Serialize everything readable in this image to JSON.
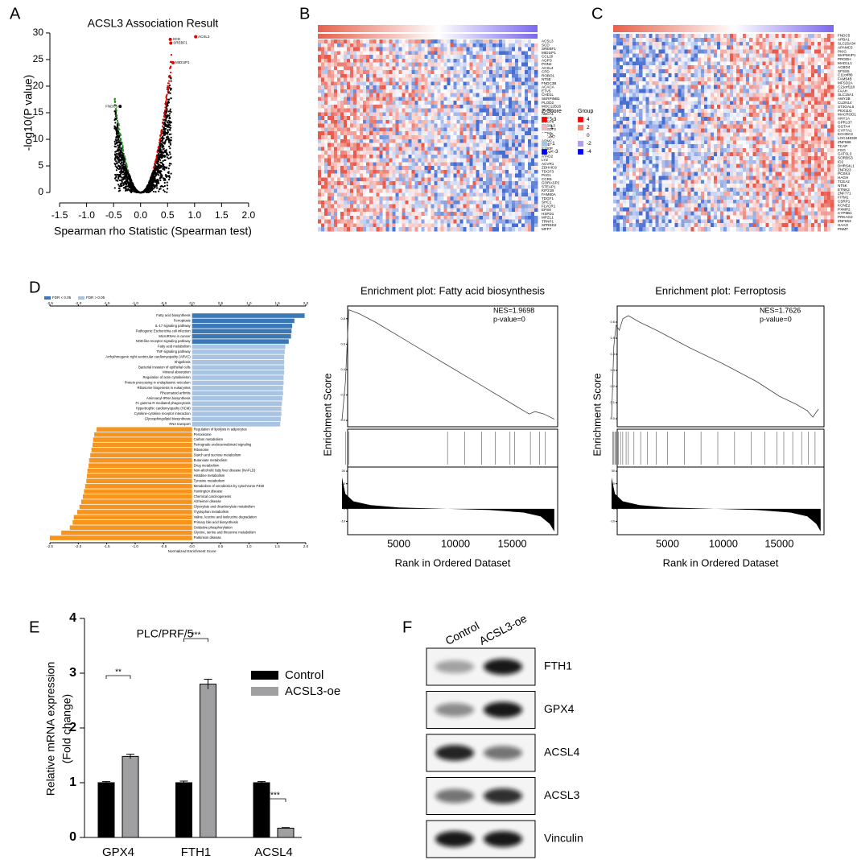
{
  "panel_labels": [
    "A",
    "B",
    "C",
    "D",
    "E",
    "F"
  ],
  "chart_data": [
    {
      "type": "scatter",
      "title": "ACSL3 Association Result",
      "xlabel": "Spearman rho Statistic (Spearman test)",
      "ylabel": "-log10(P value)",
      "xlim": [
        -1.68,
        2.24
      ],
      "ylim": [
        -0.9,
        30.9
      ],
      "xticks": [
        {
          "value": -1.5,
          "label": "-1.5"
        },
        {
          "value": -1,
          "label": "-1.0"
        },
        -0.5,
        {
          "value": 0,
          "label": "0.0"
        },
        0.5,
        {
          "value": 1,
          "label": "1.0"
        },
        1.5,
        {
          "value": 2,
          "label": "2.0"
        }
      ],
      "yticks": [
        0,
        5,
        10,
        15,
        20,
        25,
        30
      ],
      "points": {
        "names": [
          "ACSL3",
          "SCD",
          "SREBF1",
          "MID1IP1",
          "FNDC5"
        ],
        "x": [
          1.02,
          0.55,
          0.56,
          0.6,
          -0.38
        ],
        "y": [
          29.3,
          28.8,
          28.1,
          24.4,
          16.2
        ],
        "colors": [
          "#e00000",
          "#e00000",
          "#e00000",
          "#e00000",
          "#000000"
        ]
      }
    },
    {
      "type": "hbar",
      "xlabel": "Normalized Enrichment Score",
      "legend": [
        {
          "label": "FDR < 0.05",
          "color": "#3b78b5"
        },
        {
          "label": "FDR > 0.05",
          "color": "#a9c3e3"
        }
      ],
      "xlim": [
        -2.5,
        2.0
      ],
      "xticks": [
        {
          "value": -2.5,
          "label": "-2.5"
        },
        {
          "value": -2,
          "label": "-2.0"
        },
        -1.5,
        {
          "value": -1,
          "label": "-1.0"
        },
        -0.5,
        {
          "value": 0,
          "label": "0.0"
        },
        0.5,
        {
          "value": 1,
          "label": "1.0"
        },
        1.5,
        {
          "value": 2,
          "label": "2.0"
        }
      ],
      "categories": [
        "Fatty acid biosynthesis",
        "Ferroptosis",
        "IL-17 signaling pathway",
        "Pathogenic Escherichia coli infection",
        "MicroRNAs in cancer",
        "NOD-like receptor signaling pathway",
        "Fatty acid metabolism",
        "TNF signaling pathway",
        "Arrhythmogenic right ventricular cardiomyopathy (ARVC)",
        "Shigellosis",
        "Bacterial invasion of epithelial cells",
        "Mineral absorption",
        "Regulation of actin cytoskeleton",
        "Protein processing in endoplasmic reticulum",
        "Ribosome biogenesis in eukaryotes",
        "Rheumatoid arthritis",
        "Aminoacyl-tRNA biosynthesis",
        "Fc gamma R-mediated phagocytosis",
        "Hypertrophic cardiomyopathy (HCM)",
        "Cytokine-cytokine receptor interaction",
        "Glycosphingolipid biosynthesis",
        "RNA transport",
        "Regulation of lipolysis in adipocytes",
        "Peroxisome",
        "Carbon metabolism",
        "Retrograde endocannabinoid signaling",
        "Ribosome",
        "Starch and sucrose metabolism",
        "Butanoate metabolism",
        "Drug metabolism",
        "Non-alcoholic fatty liver disease (NAFLD)",
        "Histidine metabolism",
        "Tyrosine metabolism",
        "Metabolism of xenobiotics by cytochrome P450",
        "Huntington disease",
        "Chemical carcinogenesis",
        "Alzheimer disease",
        "Glyoxylate and dicarboxylate metabolism",
        "Tryptophan metabolism",
        "Valine, leucine and isoleucine degradation",
        "Primary bile acid biosynthesis",
        "Oxidative phosphorylation",
        "Glycine, serine and threonine metabolism",
        "Parkinson disease"
      ],
      "values": [
        1.98,
        1.8,
        1.76,
        1.75,
        1.74,
        1.7,
        1.64,
        1.63,
        1.62,
        1.62,
        1.62,
        1.62,
        1.61,
        1.61,
        1.6,
        1.6,
        1.59,
        1.58,
        1.57,
        1.57,
        1.56,
        1.55,
        -1.68,
        -1.72,
        -1.74,
        -1.75,
        -1.77,
        -1.79,
        -1.81,
        -1.82,
        -1.84,
        -1.85,
        -1.86,
        -1.88,
        -1.9,
        -1.92,
        -1.95,
        -1.98,
        -2.02,
        -2.08,
        -2.1,
        -2.15,
        -2.3,
        -2.5
      ],
      "colors": [
        "#3b78b5",
        "#3b78b5",
        "#3b78b5",
        "#3b78b5",
        "#3b78b5",
        "#3b78b5",
        "#a9c3e3",
        "#a9c3e3",
        "#a9c3e3",
        "#a9c3e3",
        "#a9c3e3",
        "#a9c3e3",
        "#a9c3e3",
        "#a9c3e3",
        "#a9c3e3",
        "#a9c3e3",
        "#a9c3e3",
        "#a9c3e3",
        "#a9c3e3",
        "#a9c3e3",
        "#a9c3e3",
        "#a9c3e3",
        "#f7941d",
        "#f7941d",
        "#f7941d",
        "#f7941d",
        "#f7941d",
        "#f7941d",
        "#f7941d",
        "#f7941d",
        "#f7941d",
        "#f7941d",
        "#f7941d",
        "#f7941d",
        "#f7941d",
        "#f7941d",
        "#f7941d",
        "#f7941d",
        "#f7941d",
        "#f7941d",
        "#f7941d",
        "#f7941d",
        "#f7941d",
        "#f7941d"
      ]
    },
    {
      "type": "gsea",
      "title": "Enrichment plot: Fatty acid biosynthesis",
      "nes": "NES=1.9698",
      "pvalue": "p-value=0",
      "ylabel": "Enrichment Score",
      "xlabel": "Rank in Ordered Dataset",
      "xlim": [
        0,
        19000
      ],
      "xticks": [
        5000,
        10000,
        15000
      ],
      "ylim": [
        -0.05,
        0.9
      ],
      "yticks": [
        {
          "value": 0,
          "label": "0.0"
        },
        0.2,
        0.4,
        0.6,
        0.8
      ],
      "x": [
        0,
        300,
        600,
        1500,
        3000,
        6000,
        9000,
        12000,
        15000,
        16500,
        17000,
        17800,
        18700
      ],
      "es": [
        0,
        0.3,
        0.87,
        0.84,
        0.77,
        0.61,
        0.45,
        0.29,
        0.13,
        0.05,
        0.07,
        0.05,
        0.01
      ],
      "hits": [
        300,
        600,
        9300,
        10800,
        12300,
        13500,
        14800,
        15200,
        16600,
        17400,
        17900
      ],
      "mlim": [
        -20,
        32
      ],
      "mticks": [
        30,
        20,
        10,
        0,
        -10
      ],
      "metric_x": [
        0,
        300,
        1000,
        2500,
        5000,
        9000,
        13000,
        16000,
        17500,
        18300,
        18700
      ],
      "metric": [
        25,
        12,
        6,
        3,
        1,
        0,
        -1,
        -3,
        -6,
        -12,
        -18
      ]
    },
    {
      "type": "gsea",
      "title": "Enrichment plot: Ferroptosis",
      "nes": "NES=1.7626",
      "pvalue": "p-value=0",
      "ylabel": "Enrichment Score",
      "xlabel": "Rank in Ordered Dataset",
      "xlim": [
        0,
        19000
      ],
      "xticks": [
        5000,
        10000,
        15000
      ],
      "ylim": [
        -0.05,
        0.7
      ],
      "yticks": [
        {
          "value": 0,
          "label": "0.0"
        },
        0.1,
        0.2,
        0.3,
        0.4,
        0.5,
        0.6
      ],
      "x": [
        0,
        200,
        400,
        700,
        1000,
        1500,
        2500,
        4000,
        7000,
        10000,
        13000,
        15000,
        16500,
        17500,
        18000,
        18500
      ],
      "es": [
        0,
        0.45,
        0.58,
        0.55,
        0.62,
        0.64,
        0.6,
        0.55,
        0.44,
        0.34,
        0.23,
        0.14,
        0.09,
        0.05,
        0.01,
        0.06
      ],
      "hits": [
        100,
        200,
        300,
        400,
        600,
        800,
        1000,
        1300,
        1500,
        2000,
        2600,
        3200,
        4000,
        5000,
        6500,
        8000,
        9500,
        11000,
        12500,
        13700,
        14800,
        15400,
        16200,
        17000,
        17600,
        18200
      ],
      "mlim": [
        -20,
        32
      ],
      "mticks": [
        30,
        20,
        10,
        0,
        -10
      ],
      "metric_x": [
        0,
        300,
        1000,
        2500,
        5000,
        9000,
        13000,
        16000,
        17500,
        18300,
        18700
      ],
      "metric": [
        25,
        12,
        6,
        3,
        1,
        0,
        -1,
        -3,
        -6,
        -12,
        -18
      ]
    },
    {
      "type": "bar",
      "title": "PLC/PRF/5",
      "ylabel": [
        "Relative mRNA expression",
        "(Fold change)"
      ],
      "categories": [
        "GPX4",
        "FTH1",
        "ACSL4"
      ],
      "ylim": [
        0,
        4
      ],
      "yticks": [
        0,
        1,
        2,
        3,
        4
      ],
      "series": [
        {
          "name": "Control",
          "color": "#000000",
          "values": [
            1.0,
            1.0,
            1.0
          ],
          "errors": [
            0.02,
            0.03,
            0.02
          ]
        },
        {
          "name": "ACSL3-oe",
          "color": "#a0a0a2",
          "values": [
            1.48,
            2.8,
            0.17
          ],
          "errors": [
            0.04,
            0.09,
            0.01
          ]
        }
      ],
      "annotations": [
        "**",
        "***",
        "****"
      ]
    }
  ],
  "heatmaps": {
    "b_genes": [
      "ACSL3",
      "SCD",
      "SREBF1",
      "MID1IP1",
      "CCL20",
      "AGPS",
      "PON2",
      "ACSL4",
      "CPD",
      "ROBO1",
      "NT5E",
      "FNDC3B",
      "ACACA",
      "ETV5",
      "CHD1L",
      "SERPINB1",
      "PLOD2",
      "MOC12B16",
      "AGTR1",
      "ABCA1",
      "TMC7",
      "DUSP6",
      "EPS8L3",
      "SPEDF2",
      "AZIN1",
      "SLC4A7",
      "ADM2",
      "MMD",
      "S100P",
      "ETV4",
      "ATAD2",
      "LYZ",
      "ACVR1",
      "ZDHHC9",
      "TDGF3",
      "PAG1",
      "CCR6",
      "GORASP2",
      "STEAP1",
      "KIF21B",
      "FAM60A",
      "TDGF1",
      "SHC1",
      "FLVCR1",
      "EPS8",
      "HSPD1",
      "MPZL1",
      "TRNP1",
      "SPRED2",
      "MFP7"
    ],
    "c_genes": [
      "FNDC5",
      "APBA1",
      "SLC25A34",
      "APAMC5",
      "PKIG",
      "MAP6KIP1",
      "PRODH",
      "MAD1L1",
      "ACBD4",
      "SFSS5",
      "C11orf86",
      "FAM54B",
      "MFSD2A",
      "C21orf118",
      "FAAH",
      "SLC15A1",
      "AMY2B",
      "CLDN14",
      "ST3GAL6",
      "PEX11G",
      "MACROD1",
      "ANY1A",
      "GPR137",
      "GGTA4",
      "CYP7A1",
      "ECHDC2",
      "LOC348336",
      "ZNF586",
      "TCAP",
      "FGG",
      "GATSL3",
      "SORBS3",
      "ID2",
      "DHRS4L1",
      "ZNF823",
      "PCSK4",
      "HAGH",
      "TCEA2",
      "NT5K",
      "ETNK2",
      "ZNF771",
      "FITM1",
      "CSRP1",
      "KCNE2",
      "PXMP2",
      "CYP8B1",
      "PRKAG2",
      "ZNF653",
      "HAAO",
      "PNMT"
    ],
    "zscore_title": "Z-Score",
    "zscore_labels": [
      ">3",
      "1",
      "0",
      "-1",
      "<-3"
    ],
    "zscore_colors": [
      "#ff0000",
      "#f6b3c0",
      "#ffffff",
      "#9fc6e8",
      "#0000ff"
    ],
    "group_title": "Group",
    "group_labels": [
      "4",
      "2",
      "0",
      "-2",
      "-4"
    ],
    "group_colors": [
      "#ff0000",
      "#f0806e",
      "#ffffff",
      "#a99ee8",
      "#0000ff"
    ]
  },
  "blot": {
    "columns": [
      "Control",
      "ACSL3-oe"
    ],
    "rows": [
      "FTH1",
      "GPX4",
      "ACSL4",
      "ACSL3",
      "Vinculin"
    ]
  }
}
